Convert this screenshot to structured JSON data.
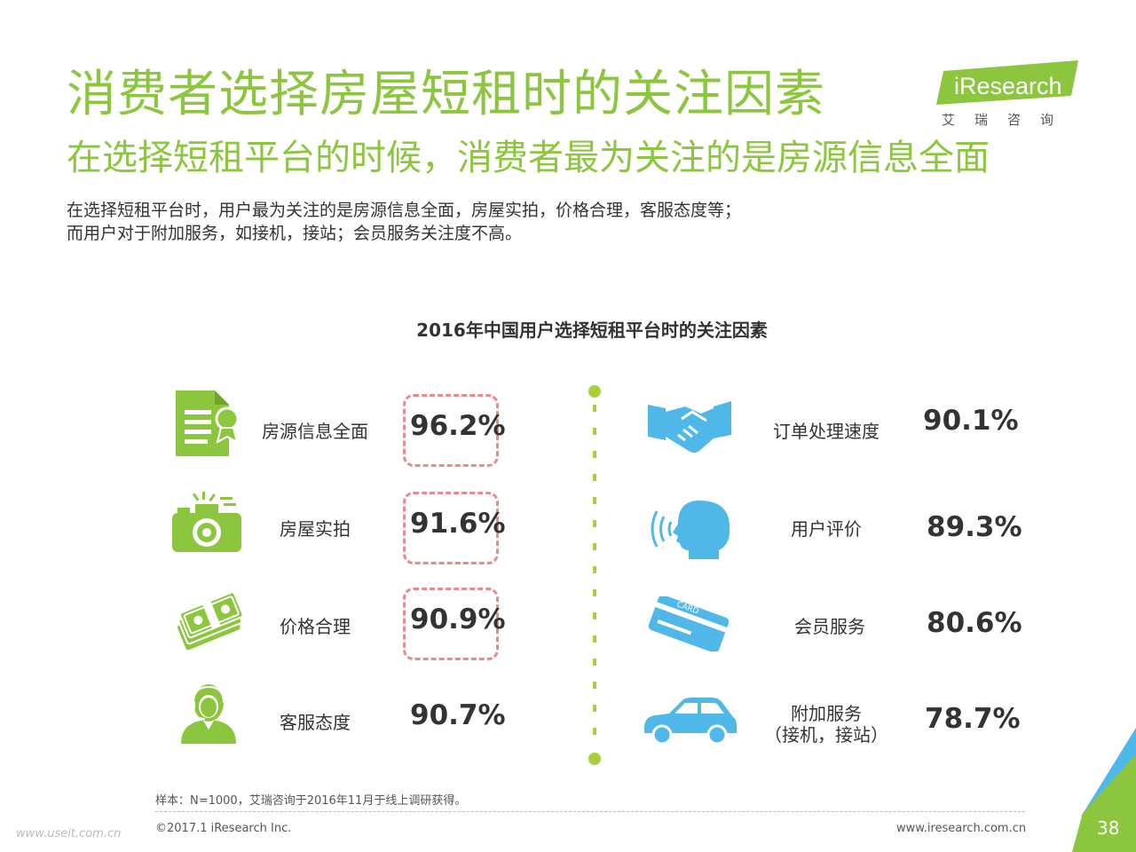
{
  "header": {
    "title": "消费者选择房屋短租时的关注因素",
    "subtitle": "在选择短租平台的时候，消费者最为关注的是房源信息全面",
    "desc_line1": "在选择短租平台时，用户最为关注的是房源信息全面，房屋实拍，价格合理，客服态度等；",
    "desc_line2": "而用户对于附加服务，如接机，接站；会员服务关注度不高。"
  },
  "logo": {
    "text": "iResearch",
    "sub": "艾瑞咨询"
  },
  "colors": {
    "green": "#8cc63f",
    "blue": "#4fb8e8",
    "dash": "#e8898b"
  },
  "chart_data": {
    "type": "table",
    "title": "2016年中国用户选择短租平台时的关注因素",
    "left": [
      {
        "label": "房源信息全面",
        "value": "96.2%",
        "icon": "document-certificate-icon",
        "highlight": true
      },
      {
        "label": "房屋实拍",
        "value": "91.6%",
        "icon": "camera-icon",
        "highlight": true
      },
      {
        "label": "价格合理",
        "value": "90.9%",
        "icon": "money-stack-icon",
        "highlight": true
      },
      {
        "label": "客服态度",
        "value": "90.7%",
        "icon": "customer-service-icon",
        "highlight": false
      }
    ],
    "right": [
      {
        "label": "订单处理速度",
        "value": "90.1%",
        "icon": "handshake-icon"
      },
      {
        "label": "用户评价",
        "value": "89.3%",
        "icon": "speaking-head-icon"
      },
      {
        "label": "会员服务",
        "value": "80.6%",
        "icon": "card-icon",
        "card_text": "CARD"
      },
      {
        "label_line1": "附加服务",
        "label_line2": "（接机，接站）",
        "value": "78.7%",
        "icon": "car-icon"
      }
    ]
  },
  "footer": {
    "note": "样本：N=1000，艾瑞咨询于2016年11月于线上调研获得。",
    "copyright": "©2017.1 iResearch Inc.",
    "site": "www.iresearch.com.cn",
    "watermark": "www.useit.com.cn",
    "page": "38"
  }
}
